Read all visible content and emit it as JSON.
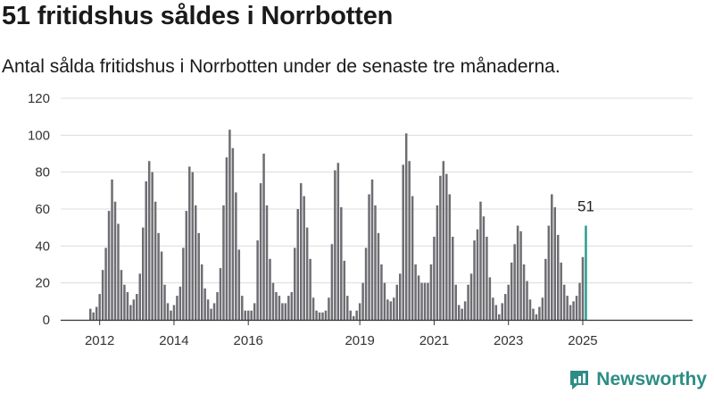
{
  "header": {
    "title": "51 fritidshus såldes i Norrbotten",
    "subtitle": "Antal sålda fritidshus i Norrbotten under de senaste tre månaderna."
  },
  "logo": {
    "text": "Newsworthy",
    "icon": "newsworthy-logo-icon"
  },
  "colors": {
    "bar": "#6e6d72",
    "highlight": "#2a9d8f",
    "grid": "#dcdcdc",
    "axis": "#333333"
  },
  "chart_data": {
    "type": "bar",
    "title": "51 fritidshus såldes i Norrbotten",
    "subtitle": "Antal sålda fritidshus i Norrbotten under de senaste tre månaderna.",
    "xlabel": "",
    "ylabel": "",
    "ylim": [
      0,
      120
    ],
    "yticks": [
      0,
      20,
      40,
      60,
      80,
      100,
      120
    ],
    "grid": true,
    "xticks": [
      {
        "label": "2012",
        "date": "2012-01"
      },
      {
        "label": "2014",
        "date": "2014-01"
      },
      {
        "label": "2016",
        "date": "2016-01"
      },
      {
        "label": "2019",
        "date": "2019-01"
      },
      {
        "label": "2021",
        "date": "2021-01"
      },
      {
        "label": "2023",
        "date": "2023-01"
      },
      {
        "label": "2025",
        "date": "2025-01"
      }
    ],
    "start_month": "2011-10",
    "values": [
      6,
      4,
      7,
      14,
      27,
      39,
      59,
      76,
      64,
      52,
      27,
      19,
      15,
      8,
      11,
      14,
      25,
      50,
      75,
      86,
      80,
      64,
      47,
      37,
      19,
      9,
      5,
      8,
      13,
      18,
      39,
      59,
      83,
      80,
      62,
      47,
      30,
      17,
      11,
      6,
      9,
      15,
      28,
      62,
      88,
      103,
      93,
      69,
      38,
      13,
      5,
      5,
      5,
      9,
      43,
      74,
      90,
      62,
      33,
      20,
      15,
      13,
      9,
      9,
      13,
      15,
      39,
      60,
      74,
      67,
      50,
      33,
      12,
      5,
      4,
      4,
      5,
      12,
      41,
      81,
      85,
      61,
      32,
      13,
      5,
      2,
      5,
      9,
      20,
      39,
      68,
      76,
      62,
      47,
      30,
      20,
      11,
      10,
      12,
      19,
      25,
      84,
      101,
      86,
      67,
      30,
      24,
      20,
      20,
      20,
      30,
      45,
      62,
      78,
      86,
      79,
      68,
      45,
      19,
      8,
      6,
      10,
      19,
      25,
      43,
      49,
      64,
      56,
      45,
      23,
      12,
      8,
      3,
      9,
      14,
      19,
      31,
      41,
      51,
      48,
      30,
      21,
      11,
      6,
      3,
      7,
      12,
      33,
      51,
      68,
      61,
      46,
      31,
      19,
      13,
      8,
      10,
      13,
      20,
      34,
      51
    ],
    "last_value_label": "51"
  }
}
